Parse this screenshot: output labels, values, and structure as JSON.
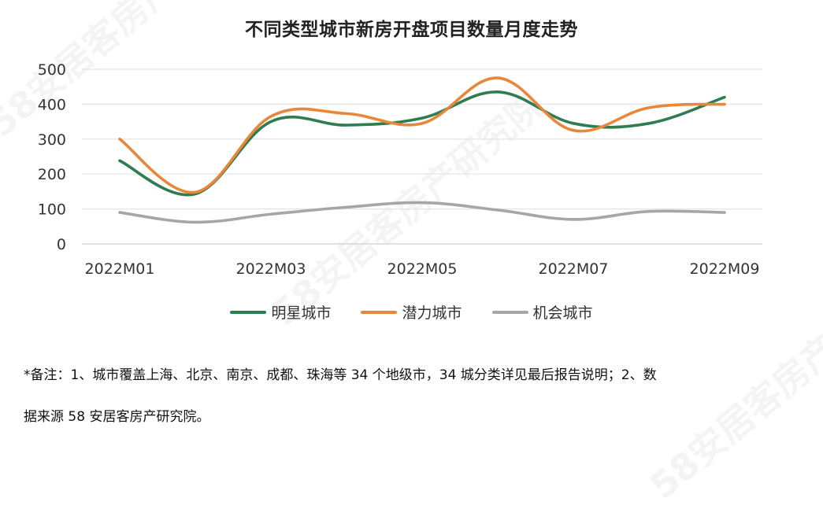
{
  "title": "不同类型城市新房开盘项目数量月度走势",
  "notes": [
    "*备注：1、城市覆盖上海、北京、南京、成都、珠海等 34 个地级市，34 城分类详见最后报告说明；2、数",
    "据来源 58 安居客房产研究院。"
  ],
  "watermark": "58安居客房产研究院",
  "chart_data": {
    "type": "line",
    "categories": [
      "2022M01",
      "2022M02",
      "2022M03",
      "2022M04",
      "2022M05",
      "2022M06",
      "2022M07",
      "2022M08",
      "2022M09"
    ],
    "x_tick_labels": [
      "2022M01",
      "2022M03",
      "2022M05",
      "2022M07",
      "2022M09"
    ],
    "y_ticks": [
      0,
      100,
      200,
      300,
      400,
      500
    ],
    "ylim": [
      0,
      500
    ],
    "grid": true,
    "legend_position": "bottom",
    "series": [
      {
        "name": "明星城市",
        "color": "#2e7d4f",
        "values": [
          238,
          143,
          350,
          340,
          360,
          435,
          345,
          345,
          420
        ]
      },
      {
        "name": "潜力城市",
        "color": "#e8873a",
        "values": [
          300,
          148,
          365,
          373,
          345,
          475,
          325,
          390,
          400
        ]
      },
      {
        "name": "机会城市",
        "color": "#a6a6a6",
        "values": [
          90,
          62,
          85,
          105,
          118,
          97,
          70,
          93,
          90
        ]
      }
    ]
  }
}
